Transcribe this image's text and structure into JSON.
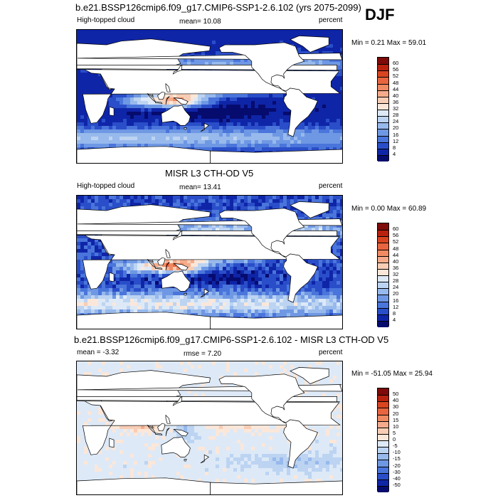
{
  "season": "DJF",
  "panels": [
    {
      "title": "b.e21.BSSP126cmip6.f09_g17.CMIP6-SSP1-2.6.102 (yrs 2075-2099)",
      "left_label": "High-topped cloud",
      "center_label": "mean=  10.08",
      "right_label": "percent",
      "minmax": "Min =   0.21 Max =  59.01",
      "colorbar_levels": [
        "60",
        "56",
        "52",
        "48",
        "44",
        "40",
        "36",
        "32",
        "28",
        "24",
        "20",
        "16",
        "12",
        "8",
        "4"
      ],
      "colorbar_colors": [
        "#7e0a0a",
        "#b8220e",
        "#d94520",
        "#e8653f",
        "#f08a63",
        "#f5ab8b",
        "#f8cdb5",
        "#fbe7d9",
        "#dde9f7",
        "#bcd4f2",
        "#97b9ec",
        "#6f98e4",
        "#4a75db",
        "#2a4ec9",
        "#0f25a8",
        "#060b6e"
      ],
      "field": "model"
    },
    {
      "title": "MISR L3 CTH-OD V5",
      "left_label": "High-topped cloud",
      "center_label": "mean=  13.41",
      "right_label": "percent",
      "minmax": "Min =   0.00 Max =  60.89",
      "colorbar_levels": [
        "60",
        "56",
        "52",
        "48",
        "44",
        "40",
        "36",
        "32",
        "28",
        "24",
        "20",
        "16",
        "12",
        "8",
        "4"
      ],
      "colorbar_colors": [
        "#7e0a0a",
        "#b8220e",
        "#d94520",
        "#e8653f",
        "#f08a63",
        "#f5ab8b",
        "#f8cdb5",
        "#fbe7d9",
        "#dde9f7",
        "#bcd4f2",
        "#97b9ec",
        "#6f98e4",
        "#4a75db",
        "#2a4ec9",
        "#0f25a8",
        "#060b6e"
      ],
      "field": "obs"
    },
    {
      "title": "b.e21.BSSP126cmip6.f09_g17.CMIP6-SSP1-2.6.102 - MISR L3 CTH-OD V5",
      "left_label": "mean =  -3.32",
      "center_label": "rmse =   7.20",
      "right_label": "percent",
      "minmax": "Min = -51.05 Max =  25.94",
      "colorbar_levels": [
        "50",
        "40",
        "30",
        "20",
        "15",
        "10",
        "5",
        "0",
        "-5",
        "-10",
        "-15",
        "-20",
        "-30",
        "-40",
        "-50"
      ],
      "colorbar_colors": [
        "#7e0a0a",
        "#b8220e",
        "#d94520",
        "#e8653f",
        "#f08a63",
        "#f5ab8b",
        "#f8cdb5",
        "#fbe7d9",
        "#dde9f7",
        "#bcd4f2",
        "#97b9ec",
        "#6f98e4",
        "#4a75db",
        "#2a4ec9",
        "#0f25a8",
        "#060b6e"
      ],
      "field": "diff"
    }
  ]
}
